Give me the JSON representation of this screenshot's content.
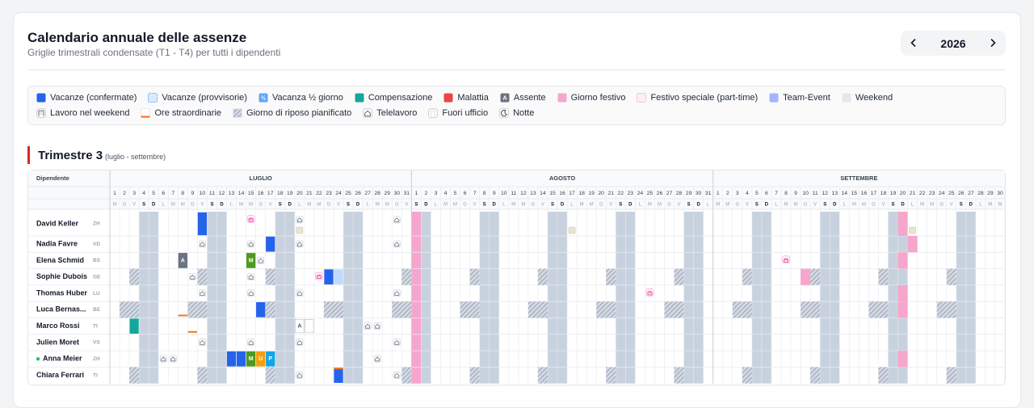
{
  "header": {
    "title": "Calendario annuale delle assenze",
    "subtitle": "Griglie trimestrali condensate (T1 - T4) per tutti i dipendenti",
    "year": 2026
  },
  "legend": [
    {
      "label": "Vacanze (confermate)",
      "color": "#2563eb",
      "style": "fill"
    },
    {
      "label": "Vacanze (provvisorie)",
      "color": "#dbeafe",
      "style": "dashed"
    },
    {
      "label": "Vacanza ½ giorno",
      "color": "#60a5fa",
      "style": "glyph",
      "glyph": "½"
    },
    {
      "label": "Compensazione",
      "color": "#14a89a",
      "style": "fill"
    },
    {
      "label": "Malattia",
      "color": "#ef4444",
      "style": "fill"
    },
    {
      "label": "Assente",
      "color": "#6b7280",
      "style": "glyph",
      "glyph": "A"
    },
    {
      "label": "Giorno festivo",
      "color": "#f6a6cc",
      "style": "fill"
    },
    {
      "label": "Festivo speciale (part-time)",
      "color": "#fdeef5",
      "style": "pale"
    },
    {
      "label": "Team-Event",
      "color": "#a5b4fc",
      "style": "fill"
    },
    {
      "label": "Weekend",
      "color": "#e5e7eb",
      "style": "fill"
    },
    {
      "label": "Lavoro nel weekend",
      "color": "#6b7280",
      "style": "icon",
      "icon": "building"
    },
    {
      "label": "Ore straordinarie",
      "color": "#f97316",
      "style": "line"
    },
    {
      "label": "Giorno di riposo pianificato",
      "color": "#9ca3af",
      "style": "hatch"
    },
    {
      "label": "Telelavoro",
      "color": "#6b7280",
      "style": "icon",
      "icon": "house"
    },
    {
      "label": "Fuori ufficio",
      "color": "#e9e4cf",
      "style": "icon",
      "icon": "door"
    },
    {
      "label": "Notte",
      "color": "#4b5563",
      "style": "icon",
      "icon": "moon"
    }
  ],
  "quarter": {
    "title": "Trimestre 3",
    "range": "(luglio - settembre)",
    "column_header": "Dipendente",
    "weekend_color": "#c8d2df",
    "months": [
      {
        "name": "LUGLIO",
        "days": [
          1,
          2,
          3,
          4,
          5,
          6,
          7,
          8,
          9,
          10,
          11,
          12,
          13,
          14,
          15,
          16,
          17,
          18,
          19,
          20,
          21,
          22,
          23,
          24,
          25,
          26,
          27,
          28,
          29,
          30,
          31
        ],
        "weekdays": [
          "M",
          "G",
          "V",
          "S",
          "D",
          "L",
          "M",
          "M",
          "G",
          "V",
          "S",
          "D",
          "L",
          "M",
          "M",
          "G",
          "V",
          "S",
          "D",
          "L",
          "M",
          "M",
          "G",
          "V",
          "S",
          "D",
          "L",
          "M",
          "M",
          "G",
          "V"
        ]
      },
      {
        "name": "AGOSTO",
        "days": [
          1,
          2,
          3,
          4,
          5,
          6,
          7,
          8,
          9,
          10,
          11,
          12,
          13,
          14,
          15,
          16,
          17,
          18,
          19,
          20,
          21,
          22,
          23,
          24,
          25,
          26,
          27,
          28,
          29,
          30,
          31
        ],
        "weekdays": [
          "S",
          "D",
          "L",
          "M",
          "M",
          "G",
          "V",
          "S",
          "D",
          "L",
          "M",
          "M",
          "G",
          "V",
          "S",
          "D",
          "L",
          "M",
          "M",
          "G",
          "V",
          "S",
          "D",
          "L",
          "M",
          "M",
          "G",
          "V",
          "S",
          "D",
          "L"
        ],
        "holidays": [
          1
        ]
      },
      {
        "name": "SETTEMBRE",
        "days": [
          1,
          2,
          3,
          4,
          5,
          6,
          7,
          8,
          9,
          10,
          11,
          12,
          13,
          14,
          15,
          16,
          17,
          18,
          19,
          20,
          21,
          22,
          23,
          24,
          25,
          26,
          27,
          28,
          29,
          30
        ],
        "weekdays": [
          "M",
          "M",
          "G",
          "V",
          "S",
          "D",
          "L",
          "M",
          "M",
          "G",
          "V",
          "S",
          "D",
          "L",
          "M",
          "M",
          "G",
          "V",
          "S",
          "D",
          "L",
          "M",
          "M",
          "G",
          "V",
          "S",
          "D",
          "L",
          "M",
          "M"
        ]
      }
    ],
    "employees": [
      {
        "name": "David Keller",
        "canton": "ZH",
        "cells": [
          {
            "m": 0,
            "d": 10,
            "k": 0
          },
          {
            "m": 0,
            "d": 15,
            "color": "#ec4899"
          },
          {
            "m": 0,
            "d": 20,
            "k": 13
          },
          {
            "m": 0,
            "d": 20,
            "k": 14
          },
          {
            "m": 0,
            "d": 30,
            "k": 13
          },
          {
            "m": 1,
            "d": 17,
            "k": 14
          },
          {
            "m": 2,
            "d": 20,
            "k": 6
          },
          {
            "m": 2,
            "d": 21,
            "k": 14
          }
        ]
      },
      {
        "name": "Nadia Favre",
        "canton": "VD",
        "cells": [
          {
            "m": 0,
            "d": 10,
            "k": 13
          },
          {
            "m": 0,
            "d": 15,
            "k": 13
          },
          {
            "m": 0,
            "d": 17,
            "k": 0
          },
          {
            "m": 0,
            "d": 20,
            "k": 13
          },
          {
            "m": 0,
            "d": 30,
            "k": 13
          },
          {
            "m": 2,
            "d": 21,
            "k": 6
          }
        ]
      },
      {
        "name": "Elena Schmid",
        "canton": "BS",
        "cells": [
          {
            "m": 0,
            "d": 8,
            "k": 5
          },
          {
            "m": 0,
            "d": 15,
            "label": "M",
            "color": "#4d9a1c"
          },
          {
            "m": 0,
            "d": 16,
            "k": 13
          },
          {
            "m": 2,
            "d": 8,
            "color": "#ec4899"
          },
          {
            "m": 2,
            "d": 20,
            "k": 6
          }
        ]
      },
      {
        "name": "Sophie Dubois",
        "canton": "GE",
        "cells": [
          {
            "m": 0,
            "d": 3,
            "k": 12
          },
          {
            "m": 0,
            "d": 9,
            "k": 13
          },
          {
            "m": 0,
            "d": 10,
            "k": 12
          },
          {
            "m": 0,
            "d": 15,
            "k": 13
          },
          {
            "m": 0,
            "d": 17,
            "k": 12
          },
          {
            "m": 0,
            "d": 22,
            "color": "#ec4899"
          },
          {
            "m": 0,
            "d": 23,
            "k": 0
          },
          {
            "m": 0,
            "d": 24,
            "k": 1
          },
          {
            "m": 0,
            "d": 31,
            "k": 12
          },
          {
            "m": 1,
            "d": 7,
            "k": 12
          },
          {
            "m": 1,
            "d": 14,
            "k": 12
          },
          {
            "m": 1,
            "d": 21,
            "k": 12
          },
          {
            "m": 1,
            "d": 28,
            "k": 12
          },
          {
            "m": 2,
            "d": 4,
            "k": 12
          },
          {
            "m": 2,
            "d": 10,
            "k": 6
          },
          {
            "m": 2,
            "d": 11,
            "k": 12
          },
          {
            "m": 2,
            "d": 18,
            "k": 12
          },
          {
            "m": 2,
            "d": 25,
            "k": 12
          }
        ]
      },
      {
        "name": "Thomas Huber",
        "canton": "LU",
        "cells": [
          {
            "m": 0,
            "d": 10,
            "k": 13
          },
          {
            "m": 0,
            "d": 15,
            "k": 13
          },
          {
            "m": 0,
            "d": 20,
            "k": 13
          },
          {
            "m": 0,
            "d": 30,
            "k": 13
          },
          {
            "m": 1,
            "d": 25,
            "color": "#ec4899"
          },
          {
            "m": 2,
            "d": 20,
            "k": 6
          }
        ]
      },
      {
        "name": "Luca Bernas...",
        "canton": "BE",
        "cells": [
          {
            "m": 0,
            "d": 2,
            "k": 12
          },
          {
            "m": 0,
            "d": 3,
            "k": 12
          },
          {
            "m": 0,
            "d": 8,
            "k": 11
          },
          {
            "m": 0,
            "d": 9,
            "k": 12
          },
          {
            "m": 0,
            "d": 10,
            "k": 12
          },
          {
            "m": 0,
            "d": 16,
            "k": 0
          },
          {
            "m": 0,
            "d": 17,
            "k": 12
          },
          {
            "m": 0,
            "d": 23,
            "k": 12
          },
          {
            "m": 0,
            "d": 24,
            "k": 12
          },
          {
            "m": 0,
            "d": 30,
            "k": 12
          },
          {
            "m": 0,
            "d": 31,
            "k": 12
          },
          {
            "m": 1,
            "d": 6,
            "k": 12
          },
          {
            "m": 1,
            "d": 7,
            "k": 12
          },
          {
            "m": 1,
            "d": 13,
            "k": 12
          },
          {
            "m": 1,
            "d": 14,
            "k": 12
          },
          {
            "m": 1,
            "d": 20,
            "k": 12
          },
          {
            "m": 1,
            "d": 21,
            "k": 12
          },
          {
            "m": 1,
            "d": 27,
            "k": 12
          },
          {
            "m": 1,
            "d": 28,
            "k": 12
          },
          {
            "m": 2,
            "d": 3,
            "k": 12
          },
          {
            "m": 2,
            "d": 4,
            "k": 12
          },
          {
            "m": 2,
            "d": 10,
            "k": 12
          },
          {
            "m": 2,
            "d": 11,
            "k": 12
          },
          {
            "m": 2,
            "d": 17,
            "k": 12
          },
          {
            "m": 2,
            "d": 18,
            "k": 12
          },
          {
            "m": 2,
            "d": 20,
            "k": 6
          },
          {
            "m": 2,
            "d": 24,
            "k": 12
          },
          {
            "m": 2,
            "d": 25,
            "k": 12
          }
        ]
      },
      {
        "name": "Marco Rossi",
        "canton": "TI",
        "cells": [
          {
            "m": 0,
            "d": 3,
            "k": 3
          },
          {
            "m": 0,
            "d": 9,
            "k": 11
          },
          {
            "m": 0,
            "d": 20,
            "k": 5,
            "pending": true
          },
          {
            "m": 0,
            "d": 21,
            "pending": true
          },
          {
            "m": 0,
            "d": 27,
            "k": 13
          },
          {
            "m": 0,
            "d": 28,
            "k": 13
          }
        ]
      },
      {
        "name": "Julien Moret",
        "canton": "VS",
        "cells": [
          {
            "m": 0,
            "d": 10,
            "k": 13
          },
          {
            "m": 0,
            "d": 15,
            "k": 13
          },
          {
            "m": 0,
            "d": 20,
            "k": 13
          },
          {
            "m": 0,
            "d": 30,
            "k": 13
          }
        ]
      },
      {
        "name": "Anna Meier",
        "canton": "ZH",
        "online": true,
        "cells": [
          {
            "m": 0,
            "d": 6,
            "k": 13
          },
          {
            "m": 0,
            "d": 7,
            "k": 13
          },
          {
            "m": 0,
            "d": 13,
            "k": 0
          },
          {
            "m": 0,
            "d": 14,
            "k": 0
          },
          {
            "m": 0,
            "d": 15,
            "label": "M",
            "color": "#4d9a1c"
          },
          {
            "m": 0,
            "d": 16,
            "label": "U",
            "color": "#f59e0b"
          },
          {
            "m": 0,
            "d": 17,
            "label": "P",
            "color": "#0ea5e9"
          },
          {
            "m": 0,
            "d": 28,
            "k": 13
          },
          {
            "m": 2,
            "d": 20,
            "k": 6
          }
        ]
      },
      {
        "name": "Chiara Ferrari",
        "canton": "TI",
        "cells": [
          {
            "m": 0,
            "d": 3,
            "k": 12
          },
          {
            "m": 0,
            "d": 10,
            "k": 12
          },
          {
            "m": 0,
            "d": 17,
            "k": 12
          },
          {
            "m": 0,
            "d": 20,
            "k": 13
          },
          {
            "m": 0,
            "d": 24,
            "k": 0
          },
          {
            "m": 0,
            "d": 24,
            "k": 11
          },
          {
            "m": 0,
            "d": 30,
            "k": 13
          },
          {
            "m": 0,
            "d": 31,
            "k": 12
          },
          {
            "m": 1,
            "d": 7,
            "k": 12
          },
          {
            "m": 1,
            "d": 14,
            "k": 12
          },
          {
            "m": 1,
            "d": 21,
            "k": 12
          },
          {
            "m": 1,
            "d": 28,
            "k": 12
          },
          {
            "m": 2,
            "d": 4,
            "k": 12
          },
          {
            "m": 2,
            "d": 11,
            "k": 12
          },
          {
            "m": 2,
            "d": 18,
            "k": 12
          },
          {
            "m": 2,
            "d": 25,
            "k": 12
          }
        ]
      }
    ]
  }
}
